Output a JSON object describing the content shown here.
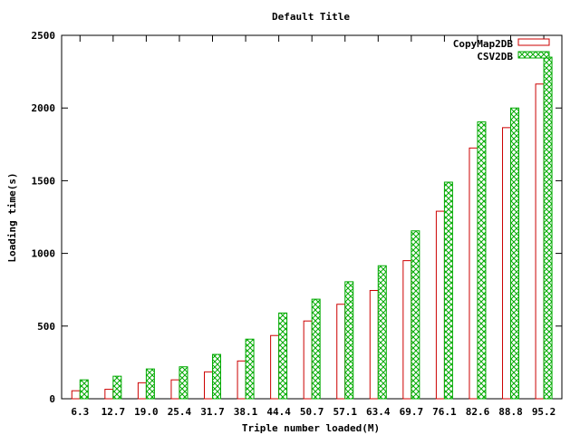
{
  "chart_data": {
    "type": "bar",
    "title": "Default Title",
    "xlabel": "Triple number loaded(M)",
    "ylabel": "Loading time(s)",
    "ylim": [
      0,
      2500
    ],
    "yticks": [
      0,
      500,
      1000,
      1500,
      2000,
      2500
    ],
    "categories": [
      "6.3",
      "12.7",
      "19.0",
      "25.4",
      "31.7",
      "38.1",
      "44.4",
      "50.7",
      "57.1",
      "63.4",
      "69.7",
      "76.1",
      "82.6",
      "88.8",
      "95.2"
    ],
    "legend_position": "top-right",
    "grid": false,
    "series": [
      {
        "name": "CopyMap2DB",
        "color": "#cc0000",
        "pattern": "none",
        "values": [
          55,
          65,
          110,
          130,
          185,
          260,
          435,
          535,
          650,
          745,
          950,
          1290,
          1725,
          1865,
          2165
        ]
      },
      {
        "name": "CSV2DB",
        "color": "#00aa00",
        "pattern": "crosshatch",
        "values": [
          130,
          155,
          205,
          220,
          305,
          410,
          590,
          685,
          805,
          915,
          1155,
          1490,
          1905,
          2000,
          2350
        ]
      }
    ]
  }
}
